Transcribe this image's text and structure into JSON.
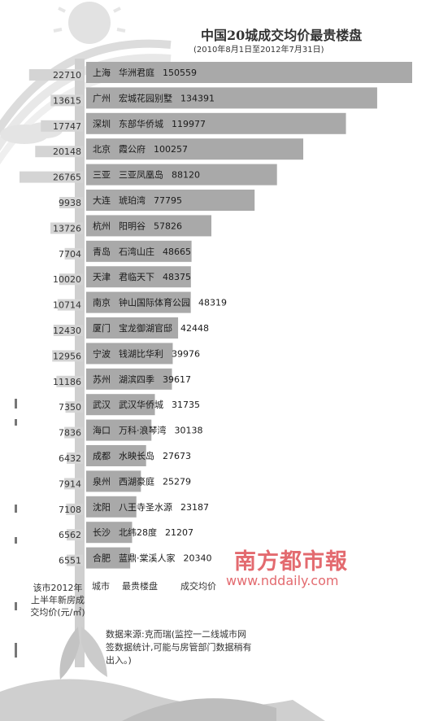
{
  "chart_data": {
    "type": "bar",
    "title": "中国20城成交均价最贵楼盘",
    "subtitle": "(2010年8月1日至2012年7月31日)",
    "rows": [
      {
        "city": "上海",
        "project": "华洲君庭",
        "price": 150559,
        "avg_price": 22710
      },
      {
        "city": "广州",
        "project": "宏城花园别墅",
        "price": 134391,
        "avg_price": 13615
      },
      {
        "city": "深圳",
        "project": "东部华侨城",
        "price": 119977,
        "avg_price": 17747
      },
      {
        "city": "北京",
        "project": "霞公府",
        "price": 100257,
        "avg_price": 20148
      },
      {
        "city": "三亚",
        "project": "三亚凤凰岛",
        "price": 88120,
        "avg_price": 26765
      },
      {
        "city": "大连",
        "project": "琥珀湾",
        "price": 77795,
        "avg_price": 9938
      },
      {
        "city": "杭州",
        "project": "阳明谷",
        "price": 57826,
        "avg_price": 13726
      },
      {
        "city": "青岛",
        "project": "石湾山庄",
        "price": 48665,
        "avg_price": 7704
      },
      {
        "city": "天津",
        "project": "君临天下",
        "price": 48375,
        "avg_price": 10020
      },
      {
        "city": "南京",
        "project": "钟山国际体育公园",
        "price": 48319,
        "avg_price": 10714
      },
      {
        "city": "厦门",
        "project": "宝龙御湖官邸",
        "price": 42448,
        "avg_price": 12430
      },
      {
        "city": "宁波",
        "project": "钱湖比华利",
        "price": 39976,
        "avg_price": 12956
      },
      {
        "city": "苏州",
        "project": "湖滨四季",
        "price": 39617,
        "avg_price": 11186
      },
      {
        "city": "武汉",
        "project": "武汉华侨城",
        "price": 31735,
        "avg_price": 7350
      },
      {
        "city": "海口",
        "project": "万科·浪琴湾",
        "price": 30138,
        "avg_price": 7836
      },
      {
        "city": "成都",
        "project": "水映长岛",
        "price": 27673,
        "avg_price": 6432
      },
      {
        "city": "泉州",
        "project": "西湖豪庭",
        "price": 25279,
        "avg_price": 7914
      },
      {
        "city": "沈阳",
        "project": "八王寺圣水源",
        "price": 23187,
        "avg_price": 7108
      },
      {
        "city": "长沙",
        "project": "北纬28度",
        "price": 21207,
        "avg_price": 6562
      },
      {
        "city": "合肥",
        "project": "蓝鼎·棠溪人家",
        "price": 20340,
        "avg_price": 6551
      }
    ],
    "column_headers": {
      "city": "城市",
      "project": "最贵楼盘",
      "price": "成交均价",
      "avg_price": "该市2012年上半年新房成交均价(元/㎡)"
    },
    "source": "数据来源:克而瑞(监控一二线城市网签数据统计,可能与房管部门数据稍有出入。)",
    "bar_color": "#a9a9a9",
    "avg_bar_color": "#d4d4d4"
  },
  "watermark": {
    "brand": "南方都市報",
    "url": "www.nddaily.com",
    "color": "#e36a6f"
  }
}
